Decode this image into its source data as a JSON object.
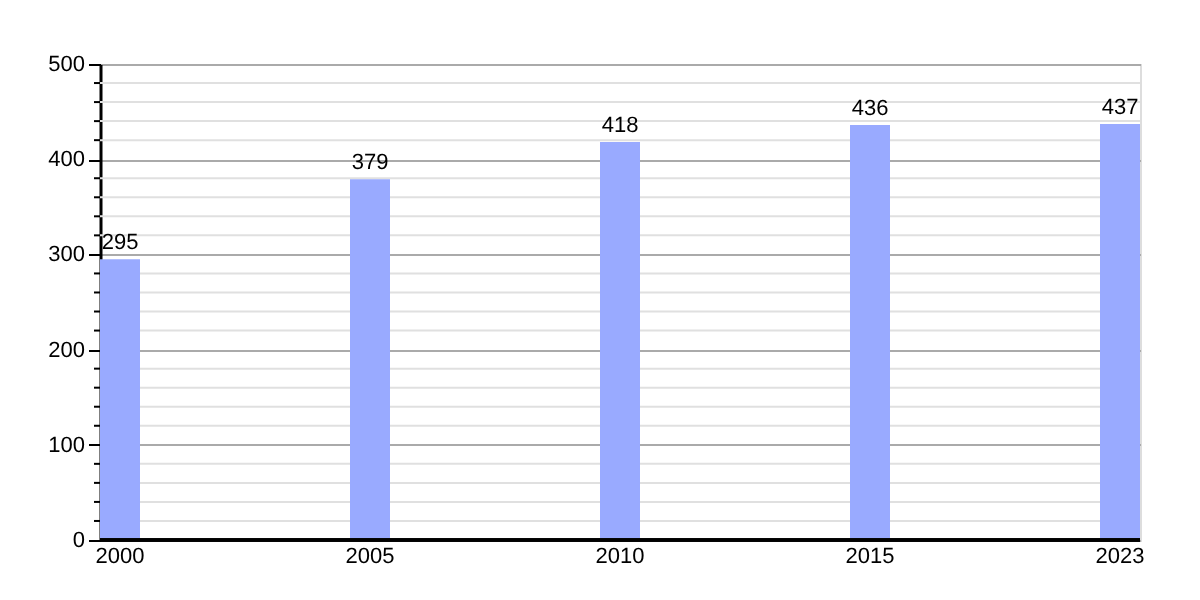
{
  "chart_data": {
    "type": "bar",
    "categories": [
      "2000",
      "2005",
      "2010",
      "2015",
      "2023"
    ],
    "values": [
      295,
      379,
      418,
      436,
      437
    ],
    "color": "#99aaff",
    "data_labels": true,
    "ylim": [
      0,
      500
    ],
    "yticks": [
      0,
      {
        "value": 20,
        "label": null
      },
      {
        "value": 40,
        "label": null
      },
      {
        "value": 60,
        "label": null
      },
      {
        "value": 80,
        "label": null
      },
      100,
      {
        "value": 120,
        "label": null
      },
      {
        "value": 140,
        "label": null
      },
      {
        "value": 160,
        "label": null
      },
      {
        "value": 180,
        "label": null
      },
      200,
      {
        "value": 220,
        "label": null
      },
      {
        "value": 240,
        "label": null
      },
      {
        "value": 260,
        "label": null
      },
      {
        "value": 280,
        "label": null
      },
      300,
      {
        "value": 320,
        "label": null
      },
      {
        "value": 340,
        "label": null
      },
      {
        "value": 360,
        "label": null
      },
      {
        "value": 380,
        "label": null
      },
      400,
      {
        "value": 420,
        "label": null
      },
      {
        "value": 440,
        "label": null
      },
      {
        "value": 460,
        "label": null
      },
      {
        "value": 480,
        "label": null
      },
      500
    ],
    "grid": "y"
  }
}
